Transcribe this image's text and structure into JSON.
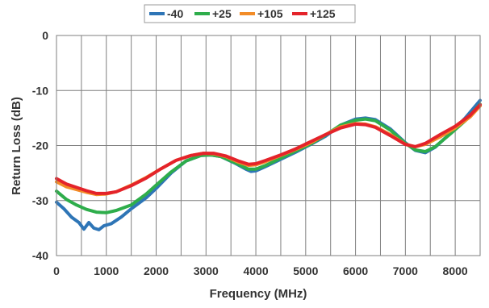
{
  "chart_data": {
    "type": "line",
    "title": "",
    "xlabel": "Frequency (MHz)",
    "ylabel": "Return Loss (dB)",
    "xlim": [
      0,
      8500
    ],
    "ylim": [
      -40,
      0
    ],
    "x_ticks": [
      0,
      1000,
      2000,
      3000,
      4000,
      5000,
      6000,
      7000,
      8000
    ],
    "x_tick_labels": [
      "0",
      "1000",
      "2000",
      "3000",
      "4000",
      "5000",
      "6000",
      "7000",
      "8000"
    ],
    "y_ticks": [
      0,
      -10,
      -20,
      -30,
      -40
    ],
    "y_tick_labels": [
      "0",
      "-10",
      "-20",
      "-30",
      "-40"
    ],
    "x_minor_gridlines_every": 500,
    "grid": true,
    "legend_position": "top-center",
    "series": [
      {
        "name": "-40",
        "color": "#2E75B6",
        "points": [
          [
            0,
            -30.3
          ],
          [
            150,
            -31.5
          ],
          [
            300,
            -33.0
          ],
          [
            450,
            -34.0
          ],
          [
            550,
            -35.2
          ],
          [
            650,
            -34.0
          ],
          [
            750,
            -35.0
          ],
          [
            850,
            -35.3
          ],
          [
            950,
            -34.6
          ],
          [
            1100,
            -34.2
          ],
          [
            1300,
            -33.0
          ],
          [
            1500,
            -31.5
          ],
          [
            1800,
            -29.5
          ],
          [
            2000,
            -27.8
          ],
          [
            2300,
            -25.0
          ],
          [
            2600,
            -22.8
          ],
          [
            2900,
            -21.8
          ],
          [
            3100,
            -21.7
          ],
          [
            3300,
            -22.0
          ],
          [
            3600,
            -23.3
          ],
          [
            3800,
            -24.3
          ],
          [
            3900,
            -24.7
          ],
          [
            4000,
            -24.6
          ],
          [
            4200,
            -23.8
          ],
          [
            4500,
            -22.5
          ],
          [
            4800,
            -21.2
          ],
          [
            5100,
            -19.8
          ],
          [
            5400,
            -18.3
          ],
          [
            5700,
            -16.3
          ],
          [
            6000,
            -15.2
          ],
          [
            6200,
            -15.0
          ],
          [
            6400,
            -15.3
          ],
          [
            6700,
            -17.0
          ],
          [
            7000,
            -19.5
          ],
          [
            7200,
            -20.9
          ],
          [
            7400,
            -21.3
          ],
          [
            7600,
            -20.3
          ],
          [
            7900,
            -17.8
          ],
          [
            8200,
            -15.0
          ],
          [
            8500,
            -11.8
          ]
        ]
      },
      {
        "name": "+25",
        "color": "#2EAD4B",
        "points": [
          [
            0,
            -28.3
          ],
          [
            200,
            -29.8
          ],
          [
            400,
            -30.8
          ],
          [
            600,
            -31.6
          ],
          [
            800,
            -32.1
          ],
          [
            1000,
            -32.2
          ],
          [
            1200,
            -31.8
          ],
          [
            1500,
            -30.8
          ],
          [
            1800,
            -28.8
          ],
          [
            2000,
            -27.2
          ],
          [
            2300,
            -24.8
          ],
          [
            2600,
            -22.8
          ],
          [
            2900,
            -21.8
          ],
          [
            3100,
            -21.7
          ],
          [
            3300,
            -22.0
          ],
          [
            3600,
            -23.2
          ],
          [
            3850,
            -24.3
          ],
          [
            4000,
            -24.3
          ],
          [
            4200,
            -23.6
          ],
          [
            4500,
            -22.3
          ],
          [
            4800,
            -21.0
          ],
          [
            5100,
            -19.7
          ],
          [
            5400,
            -18.1
          ],
          [
            5700,
            -16.3
          ],
          [
            6000,
            -15.4
          ],
          [
            6200,
            -15.2
          ],
          [
            6400,
            -15.5
          ],
          [
            6700,
            -17.2
          ],
          [
            7000,
            -19.6
          ],
          [
            7200,
            -20.8
          ],
          [
            7400,
            -21.1
          ],
          [
            7600,
            -20.2
          ],
          [
            7900,
            -17.9
          ],
          [
            8200,
            -15.5
          ],
          [
            8500,
            -12.5
          ]
        ]
      },
      {
        "name": "+105",
        "color": "#F28C28",
        "points": [
          [
            0,
            -26.6
          ],
          [
            200,
            -27.5
          ],
          [
            400,
            -28.0
          ],
          [
            600,
            -28.5
          ],
          [
            800,
            -28.9
          ],
          [
            1000,
            -28.8
          ],
          [
            1200,
            -28.4
          ],
          [
            1500,
            -27.2
          ],
          [
            1800,
            -25.8
          ],
          [
            2100,
            -24.2
          ],
          [
            2400,
            -22.7
          ],
          [
            2700,
            -21.8
          ],
          [
            2950,
            -21.4
          ],
          [
            3150,
            -21.5
          ],
          [
            3400,
            -22.0
          ],
          [
            3650,
            -23.0
          ],
          [
            3850,
            -23.6
          ],
          [
            4000,
            -23.5
          ],
          [
            4200,
            -22.9
          ],
          [
            4500,
            -21.8
          ],
          [
            4800,
            -20.7
          ],
          [
            5100,
            -19.5
          ],
          [
            5400,
            -18.0
          ],
          [
            5700,
            -16.6
          ],
          [
            6000,
            -16.0
          ],
          [
            6200,
            -16.1
          ],
          [
            6400,
            -16.6
          ],
          [
            6700,
            -18.0
          ],
          [
            7000,
            -19.8
          ],
          [
            7200,
            -20.2
          ],
          [
            7400,
            -19.8
          ],
          [
            7700,
            -18.4
          ],
          [
            8000,
            -16.8
          ],
          [
            8300,
            -14.8
          ],
          [
            8500,
            -12.8
          ]
        ]
      },
      {
        "name": "+125",
        "color": "#E4232A",
        "points": [
          [
            0,
            -26.0
          ],
          [
            200,
            -27.0
          ],
          [
            400,
            -27.6
          ],
          [
            600,
            -28.2
          ],
          [
            800,
            -28.7
          ],
          [
            1000,
            -28.7
          ],
          [
            1200,
            -28.4
          ],
          [
            1500,
            -27.3
          ],
          [
            1800,
            -25.9
          ],
          [
            2100,
            -24.2
          ],
          [
            2400,
            -22.7
          ],
          [
            2700,
            -21.8
          ],
          [
            2950,
            -21.4
          ],
          [
            3150,
            -21.4
          ],
          [
            3400,
            -21.9
          ],
          [
            3650,
            -22.8
          ],
          [
            3850,
            -23.4
          ],
          [
            4000,
            -23.3
          ],
          [
            4200,
            -22.7
          ],
          [
            4500,
            -21.7
          ],
          [
            4800,
            -20.6
          ],
          [
            5100,
            -19.3
          ],
          [
            5400,
            -18.0
          ],
          [
            5700,
            -16.8
          ],
          [
            6000,
            -16.1
          ],
          [
            6200,
            -16.2
          ],
          [
            6400,
            -16.7
          ],
          [
            6700,
            -18.2
          ],
          [
            7000,
            -19.8
          ],
          [
            7200,
            -20.2
          ],
          [
            7400,
            -19.6
          ],
          [
            7700,
            -18.0
          ],
          [
            8000,
            -16.5
          ],
          [
            8300,
            -14.5
          ],
          [
            8500,
            -12.6
          ]
        ]
      }
    ]
  }
}
